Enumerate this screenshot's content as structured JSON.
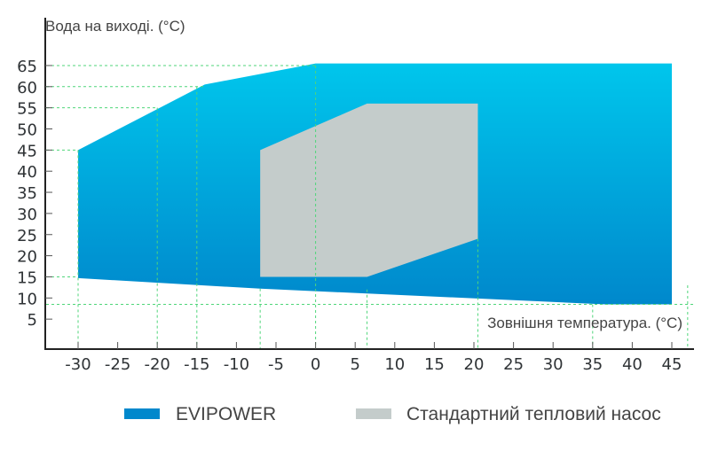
{
  "chart_data": {
    "type": "area",
    "title": "",
    "ylabel": "Вода на виході. (°С)",
    "xlabel": "Зовнішня температура. (°С)",
    "xlim": [
      -30,
      45
    ],
    "ylim": [
      0,
      65
    ],
    "x_ticks": [
      "-30",
      "-25",
      "-20",
      "-15",
      "-10",
      "-5",
      "0",
      "5",
      "10",
      "15",
      "20",
      "25",
      "30",
      "35",
      "40",
      "45"
    ],
    "y_ticks": [
      "65",
      "60",
      "55",
      "50",
      "45",
      "40",
      "35",
      "30",
      "25",
      "20",
      "15",
      "10",
      "5"
    ],
    "series": [
      {
        "name": "EVIPOWER",
        "color": "#0088cc",
        "color_top": "#00c6ec",
        "polygon": [
          [
            -30,
            45
          ],
          [
            -14,
            60.5
          ],
          [
            0,
            65.5
          ],
          [
            45,
            65.5
          ],
          [
            45,
            8.5
          ],
          [
            36.6,
            8.5
          ],
          [
            -7,
            12.2
          ],
          [
            -30,
            14.7
          ]
        ]
      },
      {
        "name": "Стандартний тепловий насос",
        "color": "#c4cccb",
        "polygon": [
          [
            -7,
            45
          ],
          [
            6.5,
            56
          ],
          [
            20.5,
            56
          ],
          [
            20.5,
            24
          ],
          [
            6.5,
            15
          ],
          [
            -7,
            15
          ]
        ]
      }
    ],
    "guides": {
      "horizontal": [
        65,
        60,
        55,
        45,
        15,
        8.5
      ],
      "vertical": [
        -30,
        -20,
        -15,
        -7,
        0,
        6.5,
        20.5,
        35,
        47
      ],
      "color": "#4fd67a"
    },
    "legend": [
      "EVIPOWER",
      "Стандартний тепловий насос"
    ],
    "legend_position": "bottom"
  }
}
